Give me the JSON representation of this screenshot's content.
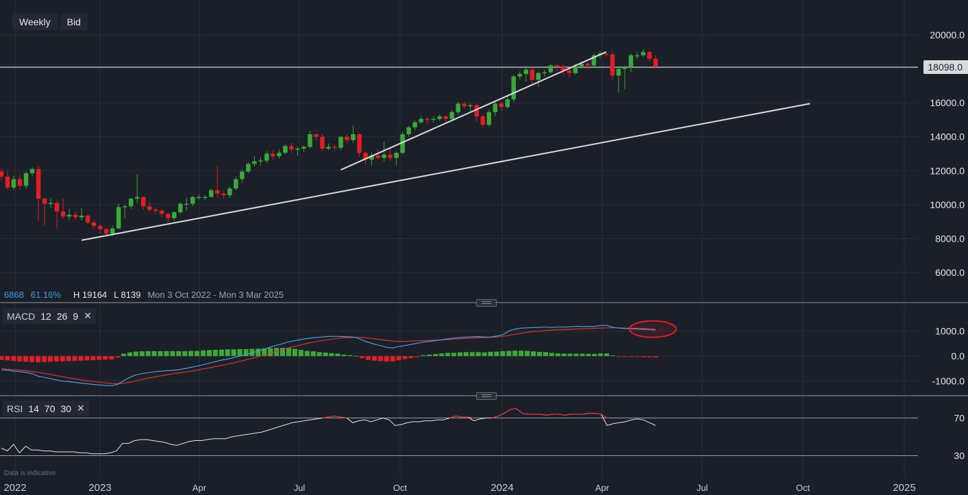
{
  "toolbar": {
    "timeframe": "Weekly",
    "price_type": "Bid"
  },
  "current_price": "18098.0",
  "stats": {
    "value1": "6868",
    "value2": "61.16%",
    "high": "H 19164",
    "low": "L 8139",
    "range": "Mon 3 Oct 2022 - Mon 3 Mar 2025"
  },
  "macd_label": {
    "name": "MACD",
    "p1": "12",
    "p2": "26",
    "p3": "9"
  },
  "rsi_label": {
    "name": "RSI",
    "p1": "14",
    "p2": "70",
    "p3": "30"
  },
  "disclaimer": "Data is indicative",
  "colors": {
    "up": "#3ea73a",
    "down": "#e01e26",
    "macd_line": "#4a9de0",
    "signal_line": "#e03131",
    "rsi_line": "#e8eaee",
    "rsi_over": "#e03131",
    "background": "#1b1f27",
    "trendline": "#d9dbe0",
    "annotation": "#e01e26"
  },
  "chart_data": {
    "type": "candlestick",
    "timeframe": "weekly",
    "date_range": [
      "2022-10-03",
      "2025-03-03"
    ],
    "x_tick_labels": [
      "2022",
      "2023",
      "Apr",
      "Jul",
      "Oct",
      "2024",
      "Apr",
      "Jul",
      "Oct",
      "2025"
    ],
    "price_axis": {
      "ticks": [
        6000,
        8000,
        10000,
        12000,
        14000,
        16000,
        18000,
        20000
      ],
      "labels": [
        "6000.0",
        "8000.0",
        "10000.0",
        "12000.0",
        "14000.0",
        "16000.0",
        "18000.0",
        "20000.0"
      ],
      "ylim": [
        5800,
        20500
      ]
    },
    "horizontal_line": 18098,
    "high": 19164,
    "low": 8139,
    "candles": [
      [
        11950,
        11650,
        12150,
        11400
      ],
      [
        11650,
        11000,
        11950,
        10850
      ],
      [
        11000,
        11500,
        11700,
        10850
      ],
      [
        11500,
        11100,
        11750,
        10900
      ],
      [
        11100,
        11850,
        11950,
        10950
      ],
      [
        11850,
        12100,
        12200,
        11650
      ],
      [
        12100,
        10350,
        12300,
        9050
      ],
      [
        10350,
        10050,
        10400,
        8750
      ],
      [
        10050,
        10100,
        10400,
        9800
      ],
      [
        10100,
        9600,
        10300,
        8600
      ],
      [
        9600,
        9300,
        10350,
        9150
      ],
      [
        9300,
        9400,
        9750,
        9100
      ],
      [
        9400,
        9250,
        9600,
        9100
      ],
      [
        9250,
        9350,
        9800,
        9050
      ],
      [
        9350,
        8950,
        9400,
        8850
      ],
      [
        8950,
        8750,
        9100,
        8600
      ],
      [
        8750,
        8550,
        8850,
        8300
      ],
      [
        8550,
        8300,
        8650,
        8150
      ],
      [
        8300,
        8600,
        8750,
        8150
      ],
      [
        8600,
        9850,
        10050,
        8550
      ],
      [
        9850,
        9900,
        10000,
        9200
      ],
      [
        9900,
        10350,
        10400,
        9750
      ],
      [
        10350,
        10450,
        11800,
        10100
      ],
      [
        10450,
        9900,
        10500,
        9700
      ],
      [
        9900,
        9700,
        10150,
        9600
      ],
      [
        9700,
        9650,
        9850,
        9450
      ],
      [
        9650,
        9450,
        9700,
        9250
      ],
      [
        9450,
        9200,
        9550,
        8950
      ],
      [
        9200,
        9550,
        9650,
        9050
      ],
      [
        9550,
        10050,
        10150,
        9450
      ],
      [
        10050,
        10050,
        10400,
        9650
      ],
      [
        10050,
        10450,
        10500,
        9900
      ],
      [
        10450,
        10450,
        10600,
        10300
      ],
      [
        10450,
        10450,
        10550,
        10250
      ],
      [
        10450,
        10850,
        10950,
        10400
      ],
      [
        10850,
        10650,
        12300,
        10400
      ],
      [
        10650,
        10550,
        10800,
        10350
      ],
      [
        10550,
        10950,
        11050,
        10400
      ],
      [
        10950,
        11500,
        11650,
        10850
      ],
      [
        11500,
        11950,
        12100,
        11300
      ],
      [
        11950,
        12400,
        12500,
        11850
      ],
      [
        12400,
        12550,
        12850,
        12250
      ],
      [
        12550,
        12600,
        12800,
        12300
      ],
      [
        12600,
        13000,
        13150,
        12450
      ],
      [
        13000,
        12850,
        13200,
        12650
      ],
      [
        12850,
        13050,
        13250,
        12700
      ],
      [
        13050,
        13450,
        13550,
        12950
      ],
      [
        13450,
        13250,
        13650,
        13050
      ],
      [
        13250,
        13300,
        13400,
        12900
      ],
      [
        13300,
        13400,
        13500,
        13100
      ],
      [
        13400,
        14150,
        14350,
        13300
      ],
      [
        14150,
        14000,
        14200,
        13750
      ],
      [
        14000,
        13300,
        14150,
        13150
      ],
      [
        13300,
        13400,
        13600,
        13200
      ],
      [
        13400,
        13350,
        13550,
        13150
      ],
      [
        13350,
        14000,
        14050,
        13200
      ],
      [
        14000,
        13800,
        14150,
        13600
      ],
      [
        13800,
        14150,
        14650,
        13650
      ],
      [
        14150,
        13050,
        14200,
        12800
      ],
      [
        13050,
        12650,
        13150,
        12350
      ],
      [
        12650,
        12900,
        13050,
        12300
      ],
      [
        12900,
        12750,
        13250,
        12650
      ],
      [
        12750,
        12950,
        13700,
        12550
      ],
      [
        12950,
        12750,
        13350,
        12600
      ],
      [
        12750,
        13050,
        13150,
        12300
      ],
      [
        13050,
        14150,
        14300,
        12950
      ],
      [
        14150,
        14550,
        14650,
        14000
      ],
      [
        14550,
        14850,
        14950,
        14400
      ],
      [
        14850,
        15050,
        15200,
        14750
      ],
      [
        15050,
        15000,
        15150,
        14750
      ],
      [
        15000,
        15050,
        15200,
        14850
      ],
      [
        15050,
        15200,
        15300,
        14950
      ],
      [
        15200,
        15050,
        15250,
        14850
      ],
      [
        15050,
        15450,
        15550,
        14950
      ],
      [
        15450,
        15950,
        16050,
        15300
      ],
      [
        15950,
        15800,
        16050,
        15650
      ],
      [
        15800,
        15850,
        15950,
        15500
      ],
      [
        15850,
        15200,
        15950,
        14900
      ],
      [
        15200,
        14700,
        15350,
        14550
      ],
      [
        14700,
        15450,
        15600,
        14600
      ],
      [
        15450,
        15950,
        16050,
        15200
      ],
      [
        15950,
        15750,
        16050,
        15550
      ],
      [
        15750,
        16200,
        16400,
        15650
      ],
      [
        16200,
        17550,
        17650,
        16050
      ],
      [
        17550,
        17700,
        17850,
        17350
      ],
      [
        17700,
        17950,
        18050,
        17250
      ],
      [
        17950,
        17350,
        18050,
        17150
      ],
      [
        17350,
        17750,
        17850,
        16950
      ],
      [
        17750,
        17800,
        17950,
        17550
      ],
      [
        17800,
        18200,
        18300,
        17700
      ],
      [
        18200,
        18150,
        18300,
        17850
      ],
      [
        18150,
        17900,
        18250,
        17650
      ],
      [
        17900,
        17750,
        18050,
        17500
      ],
      [
        17750,
        18150,
        18300,
        17650
      ],
      [
        18150,
        18300,
        18450,
        18000
      ],
      [
        18300,
        18200,
        18400,
        17950
      ],
      [
        18200,
        18800,
        18900,
        18150
      ],
      [
        18800,
        18900,
        19050,
        18600
      ],
      [
        18900,
        18850,
        18950,
        18700
      ],
      [
        18850,
        17600,
        19050,
        17350
      ],
      [
        17600,
        18000,
        18150,
        16600
      ],
      [
        18000,
        18100,
        18200,
        16800
      ],
      [
        18100,
        18800,
        18900,
        17800
      ],
      [
        18800,
        18800,
        19000,
        18600
      ],
      [
        18800,
        19000,
        19164,
        18700
      ],
      [
        19000,
        18600,
        19050,
        18400
      ],
      [
        18600,
        18150,
        18800,
        18050
      ]
    ],
    "trendlines": [
      {
        "from": [
          "2023-01-02",
          7900
        ],
        "to": [
          "2025-04-07",
          15950
        ]
      },
      {
        "from": [
          "2023-10-23",
          12050
        ],
        "to": [
          "2024-08-19",
          19000
        ]
      }
    ],
    "macd": {
      "params": [
        12,
        26,
        9
      ],
      "ylim": [
        -1500,
        2000
      ],
      "ticks": [
        1000,
        0,
        -1000
      ],
      "tick_labels": [
        "1000.0",
        "0.0",
        "-1000.0"
      ],
      "macd_line": [
        -550,
        -560,
        -600,
        -620,
        -650,
        -700,
        -800,
        -850,
        -900,
        -950,
        -1000,
        -1020,
        -1050,
        -1080,
        -1100,
        -1130,
        -1150,
        -1170,
        -1180,
        -1130,
        -980,
        -850,
        -750,
        -700,
        -660,
        -630,
        -600,
        -580,
        -570,
        -540,
        -500,
        -450,
        -400,
        -340,
        -280,
        -220,
        -160,
        -120,
        -60,
        0,
        60,
        130,
        200,
        280,
        360,
        430,
        500,
        570,
        620,
        660,
        700,
        730,
        750,
        780,
        790,
        790,
        780,
        770,
        740,
        640,
        550,
        480,
        420,
        350,
        330,
        380,
        420,
        470,
        510,
        560,
        580,
        620,
        650,
        690,
        720,
        740,
        760,
        770,
        780,
        760,
        760,
        800,
        850,
        1000,
        1080,
        1120,
        1130,
        1150,
        1150,
        1160,
        1150,
        1160,
        1160,
        1170,
        1190,
        1180,
        1180,
        1190,
        1220,
        1230,
        1150,
        1120,
        1100,
        1090,
        1080,
        1070,
        1060,
        1040
      ],
      "signal_line": [
        -500,
        -520,
        -540,
        -560,
        -580,
        -610,
        -650,
        -690,
        -730,
        -780,
        -820,
        -870,
        -910,
        -950,
        -980,
        -1010,
        -1040,
        -1070,
        -1090,
        -1100,
        -1080,
        -1040,
        -990,
        -930,
        -880,
        -830,
        -790,
        -750,
        -710,
        -670,
        -640,
        -600,
        -560,
        -510,
        -470,
        -420,
        -370,
        -320,
        -270,
        -210,
        -150,
        -90,
        -20,
        50,
        120,
        190,
        260,
        330,
        390,
        450,
        510,
        560,
        600,
        640,
        680,
        710,
        730,
        740,
        750,
        740,
        720,
        690,
        660,
        630,
        600,
        590,
        590,
        600,
        610,
        620,
        630,
        640,
        650,
        660,
        680,
        690,
        710,
        720,
        730,
        740,
        750,
        760,
        790,
        830,
        870,
        910,
        950,
        980,
        1000,
        1020,
        1040,
        1050,
        1060,
        1070,
        1080,
        1090,
        1100,
        1110,
        1120,
        1130,
        1130,
        1130,
        1120,
        1110,
        1110,
        1100,
        1090,
        1080
      ],
      "histogram": [
        -150,
        -170,
        -190,
        -210,
        -230,
        -240,
        -250,
        -240,
        -230,
        -220,
        -210,
        -200,
        -190,
        -180,
        -170,
        -160,
        -150,
        -140,
        -130,
        -60,
        100,
        150,
        180,
        190,
        200,
        200,
        200,
        200,
        200,
        200,
        200,
        210,
        210,
        230,
        240,
        250,
        260,
        270,
        270,
        280,
        280,
        290,
        300,
        310,
        320,
        330,
        330,
        330,
        290,
        250,
        210,
        190,
        160,
        140,
        120,
        100,
        60,
        40,
        10,
        -80,
        -150,
        -180,
        -200,
        -220,
        -210,
        -170,
        -120,
        -80,
        -40,
        40,
        60,
        80,
        110,
        130,
        130,
        150,
        160,
        160,
        160,
        150,
        170,
        180,
        200,
        210,
        220,
        220,
        210,
        190,
        170,
        160,
        130,
        110,
        100,
        100,
        100,
        100,
        90,
        90,
        110,
        110,
        30,
        -10,
        -30,
        -30,
        -30,
        -40,
        -40,
        -50
      ]
    },
    "rsi": {
      "params": [
        14,
        70,
        30
      ],
      "ylim": [
        10,
        90
      ],
      "levels": [
        70,
        30
      ],
      "level_labels": [
        "70",
        "30"
      ],
      "values": [
        38,
        35,
        42,
        33,
        40,
        36,
        36,
        35,
        35,
        34,
        34,
        34,
        34,
        33,
        33,
        32,
        32,
        32,
        33,
        35,
        43,
        43,
        46,
        47,
        47,
        46,
        45,
        44,
        42,
        41,
        43,
        45,
        46,
        46,
        47,
        48,
        48,
        48,
        50,
        51,
        52,
        53,
        54,
        55,
        57,
        59,
        61,
        63,
        65,
        66,
        67,
        68,
        69,
        70,
        71,
        72,
        71,
        70,
        65,
        67,
        68,
        66,
        68,
        70,
        68,
        62,
        63,
        65,
        66,
        66,
        67,
        67,
        68,
        68,
        70,
        72,
        71,
        71,
        67,
        69,
        70,
        70,
        72,
        75,
        79,
        80,
        75,
        74,
        74,
        74,
        73,
        74,
        74,
        73,
        74,
        74,
        74,
        75,
        75,
        74,
        62,
        64,
        65,
        66,
        68,
        69,
        68,
        65,
        62
      ],
      "rsi_label_note": "values above 70 drawn in red"
    }
  }
}
